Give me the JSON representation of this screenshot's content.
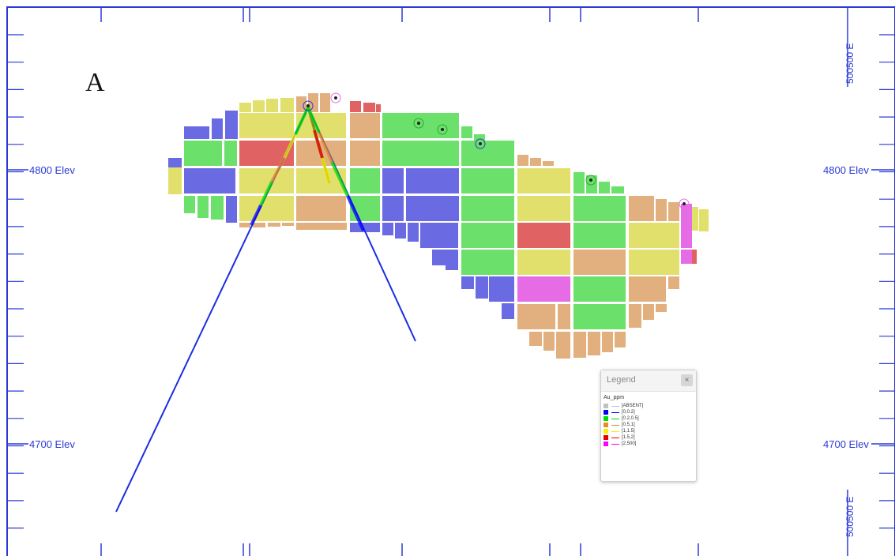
{
  "panel_label": "A",
  "elevations": {
    "upper_left": "4800 Elev",
    "upper_right": "4800 Elev",
    "lower_left": "4700 Elev",
    "lower_right": "4700 Elev"
  },
  "easting": {
    "top": "500500 E",
    "bottom": "500500 E"
  },
  "legend": {
    "title": "Legend",
    "close_symbol": "×",
    "field": "Au_ppm",
    "items": [
      {
        "label": "[ABSENT]",
        "color": "#c0c0c0"
      },
      {
        "label": "[0,0.2]",
        "color": "#0000ff"
      },
      {
        "label": "[0.2,0.5]",
        "color": "#00dd00"
      },
      {
        "label": "[0.5,1]",
        "color": "#e88a2a"
      },
      {
        "label": "[1,1.5]",
        "color": "#f2f200"
      },
      {
        "label": "[1.5,2]",
        "color": "#e60000"
      },
      {
        "label": "[2,500]",
        "color": "#ff00ff"
      }
    ]
  },
  "colors": {
    "frame": "#2b3ad6",
    "drillhole": "#1a2ee0",
    "block_blue": "#6a6ae3",
    "block_green": "#6be06b",
    "block_yellow": "#e2e06c",
    "block_tan": "#e2b07e",
    "block_red": "#e06262",
    "block_magenta": "#e66ce6"
  }
}
